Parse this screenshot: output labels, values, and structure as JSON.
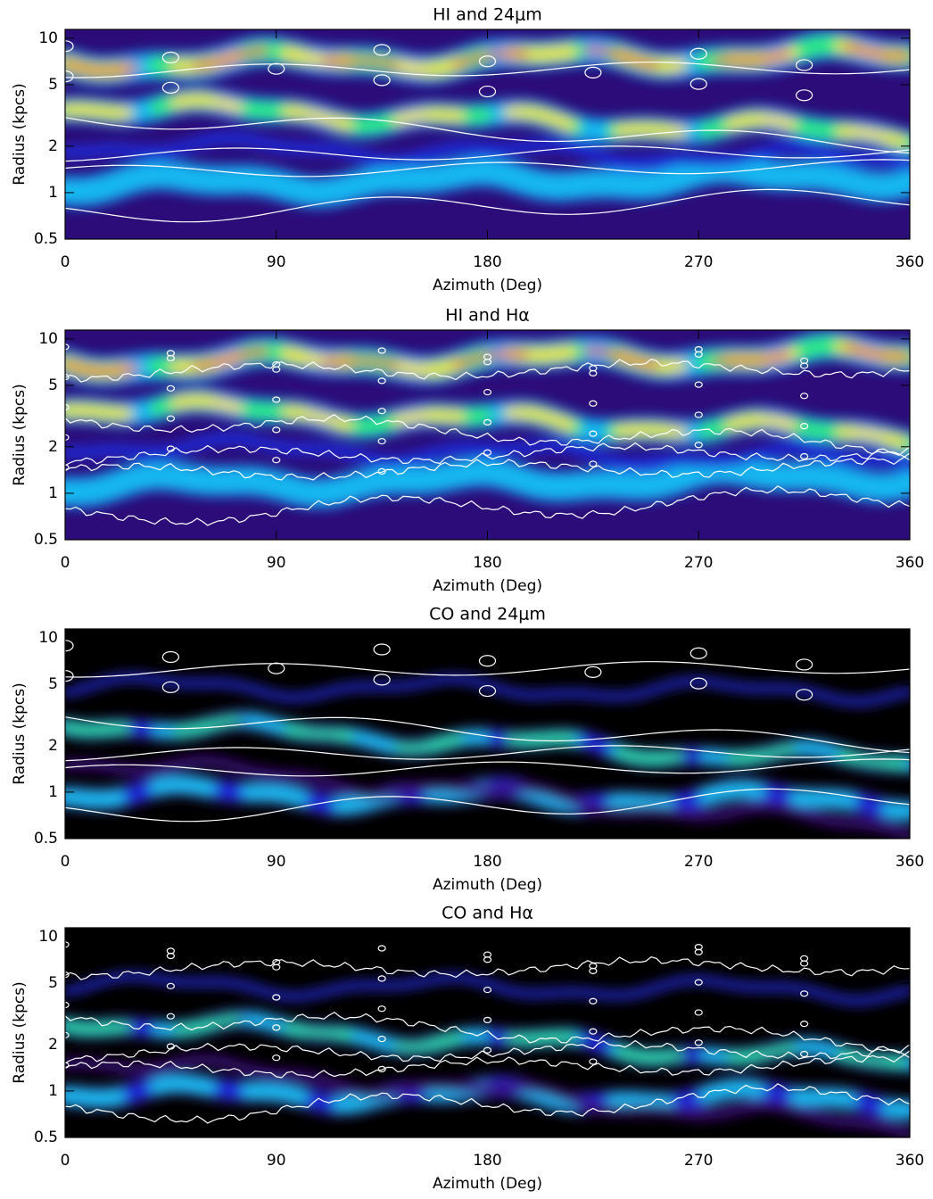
{
  "chart_data": [
    {
      "type": "heatmap",
      "title": "HI and 24μm",
      "xlabel": "Azimuth (Deg)",
      "ylabel": "Radius (kpcs)",
      "xlim": [
        0,
        360
      ],
      "xticks": [
        0,
        90,
        180,
        270,
        360
      ],
      "ylim": [
        0.5,
        11.4
      ],
      "yticks": [
        0.5,
        1,
        2,
        5,
        10
      ],
      "yscale": "log"
    },
    {
      "type": "heatmap",
      "title": "HI and Hα",
      "xlabel": "Azimuth (Deg)",
      "ylabel": "Radius (kpcs)",
      "xlim": [
        0,
        360
      ],
      "xticks": [
        0,
        90,
        180,
        270,
        360
      ],
      "ylim": [
        0.5,
        11.4
      ],
      "yticks": [
        0.5,
        1,
        2,
        5,
        10
      ],
      "yscale": "log"
    },
    {
      "type": "heatmap",
      "title": "CO and 24μm",
      "xlabel": "Azimuth (Deg)",
      "ylabel": "Radius (kpcs)",
      "xlim": [
        0,
        360
      ],
      "xticks": [
        0,
        90,
        180,
        270,
        360
      ],
      "ylim": [
        0.5,
        11.4
      ],
      "yticks": [
        0.5,
        1,
        2,
        5,
        10
      ],
      "yscale": "log"
    },
    {
      "type": "heatmap",
      "title": "CO and Hα",
      "xlabel": "Azimuth (Deg)",
      "ylabel": "Radius (kpcs)",
      "xlim": [
        0,
        360
      ],
      "xticks": [
        0,
        90,
        180,
        270,
        360
      ],
      "ylim": [
        0.5,
        11.4
      ],
      "yticks": [
        0.5,
        1,
        2,
        5,
        10
      ],
      "yscale": "log"
    }
  ]
}
